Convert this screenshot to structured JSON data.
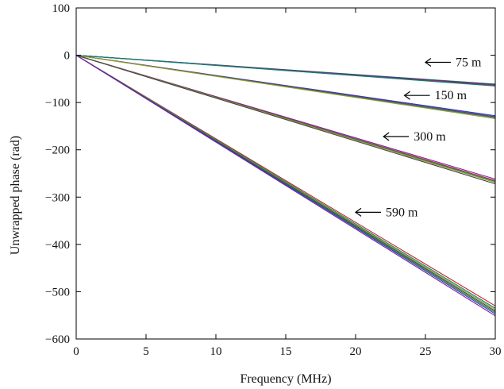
{
  "chart_data": {
    "type": "line",
    "xlabel": "Frequency (MHz)",
    "ylabel": "Unwrapped phase (rad)",
    "xlim": [
      0,
      30
    ],
    "ylim": [
      -600,
      100
    ],
    "xticks": [
      0,
      5,
      10,
      15,
      20,
      25,
      30
    ],
    "yticks": [
      100,
      0,
      -100,
      -200,
      -300,
      -400,
      -500,
      -600
    ],
    "xtick_labels": [
      "0",
      "5",
      "10",
      "15",
      "20",
      "25",
      "30"
    ],
    "ytick_labels": [
      "100",
      "0",
      "−100",
      "−200",
      "−300",
      "−400",
      "−500",
      "−600"
    ],
    "grid": false,
    "line_colors": [
      "#2e7d32",
      "#1f3fbf",
      "#7b1fa2",
      "#c62828",
      "#00897b",
      "#9e9d24",
      "#444444"
    ],
    "groups": [
      {
        "label": "75 m",
        "arrow_x": 25,
        "arrow_y": -15,
        "series": [
          {
            "x": [
              0,
              30
            ],
            "y": [
              0,
              -61
            ]
          },
          {
            "x": [
              0,
              30
            ],
            "y": [
              0,
              -62
            ]
          },
          {
            "x": [
              0,
              30
            ],
            "y": [
              0,
              -63
            ]
          },
          {
            "x": [
              0,
              30
            ],
            "y": [
              0,
              -64
            ]
          },
          {
            "x": [
              0,
              30
            ],
            "y": [
              0,
              -65
            ]
          }
        ]
      },
      {
        "label": "150 m",
        "arrow_x": 23.5,
        "arrow_y": -85,
        "series": [
          {
            "x": [
              0,
              30
            ],
            "y": [
              0,
              -128
            ]
          },
          {
            "x": [
              0,
              30
            ],
            "y": [
              0,
              -130
            ]
          },
          {
            "x": [
              0,
              30
            ],
            "y": [
              0,
              -131
            ]
          },
          {
            "x": [
              0,
              30
            ],
            "y": [
              0,
              -132
            ]
          },
          {
            "x": [
              0,
              30
            ],
            "y": [
              0,
              -134
            ]
          }
        ]
      },
      {
        "label": "300 m",
        "arrow_x": 22,
        "arrow_y": -172,
        "series": [
          {
            "x": [
              0,
              30
            ],
            "y": [
              0,
              -262
            ]
          },
          {
            "x": [
              0,
              30
            ],
            "y": [
              0,
              -265
            ]
          },
          {
            "x": [
              0,
              30
            ],
            "y": [
              0,
              -267
            ]
          },
          {
            "x": [
              0,
              30
            ],
            "y": [
              0,
              -269
            ]
          },
          {
            "x": [
              0,
              30
            ],
            "y": [
              0,
              -272
            ]
          }
        ]
      },
      {
        "label": "590 m",
        "arrow_x": 20,
        "arrow_y": -332,
        "series": [
          {
            "x": [
              0,
              30
            ],
            "y": [
              0,
              -530
            ]
          },
          {
            "x": [
              0,
              30
            ],
            "y": [
              0,
              -535
            ]
          },
          {
            "x": [
              0,
              30
            ],
            "y": [
              0,
              -538
            ]
          },
          {
            "x": [
              0,
              30
            ],
            "y": [
              0,
              -541
            ]
          },
          {
            "x": [
              0,
              30
            ],
            "y": [
              0,
              -544
            ]
          },
          {
            "x": [
              0,
              30
            ],
            "y": [
              0,
              -547
            ]
          },
          {
            "x": [
              0,
              30
            ],
            "y": [
              0,
              -551
            ]
          }
        ]
      }
    ]
  }
}
